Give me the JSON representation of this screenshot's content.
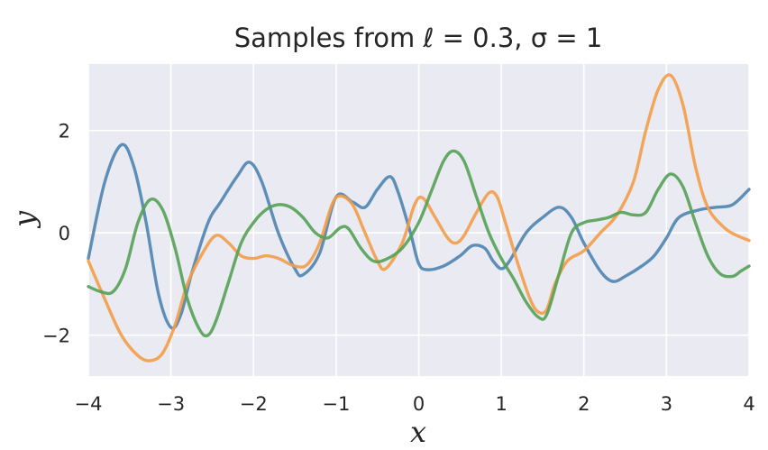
{
  "chart_data": {
    "type": "line",
    "title": "Samples from ℓ = 0.3, σ = 1",
    "xlabel": "x",
    "ylabel": "y",
    "xlim": [
      -4,
      4
    ],
    "ylim": [
      -2.8,
      3.3
    ],
    "xticks": [
      -4,
      -3,
      -2,
      -1,
      0,
      1,
      2,
      3,
      4
    ],
    "xtick_labels": [
      "−4",
      "−3",
      "−2",
      "−1",
      "0",
      "1",
      "2",
      "3",
      "4"
    ],
    "yticks": [
      -2,
      0,
      2
    ],
    "ytick_labels": [
      "−2",
      "0",
      "2"
    ],
    "grid": true,
    "legend": false,
    "colors": {
      "background": "#eaeaf2",
      "grid": "#ffffff",
      "text": "#262626"
    },
    "series": [
      {
        "color": "#4c84b0",
        "points": [
          [
            -4,
            -0.5
          ],
          [
            -3.8,
            1.0
          ],
          [
            -3.6,
            1.72
          ],
          [
            -3.45,
            1.3
          ],
          [
            -3.3,
            0.2
          ],
          [
            -3.15,
            -1.2
          ],
          [
            -3.0,
            -1.85
          ],
          [
            -2.88,
            -1.6
          ],
          [
            -2.75,
            -0.8
          ],
          [
            -2.55,
            0.2
          ],
          [
            -2.4,
            0.6
          ],
          [
            -2.2,
            1.1
          ],
          [
            -2.05,
            1.38
          ],
          [
            -1.9,
            1.0
          ],
          [
            -1.7,
            0.0
          ],
          [
            -1.5,
            -0.7
          ],
          [
            -1.4,
            -0.82
          ],
          [
            -1.2,
            -0.4
          ],
          [
            -1.0,
            0.7
          ],
          [
            -0.8,
            0.6
          ],
          [
            -0.65,
            0.5
          ],
          [
            -0.5,
            0.85
          ],
          [
            -0.35,
            1.1
          ],
          [
            -0.25,
            0.8
          ],
          [
            -0.1,
            0.0
          ],
          [
            0.0,
            -0.6
          ],
          [
            0.1,
            -0.72
          ],
          [
            0.3,
            -0.65
          ],
          [
            0.5,
            -0.45
          ],
          [
            0.65,
            -0.25
          ],
          [
            0.8,
            -0.3
          ],
          [
            0.9,
            -0.55
          ],
          [
            1.0,
            -0.7
          ],
          [
            1.1,
            -0.55
          ],
          [
            1.3,
            0.0
          ],
          [
            1.5,
            0.3
          ],
          [
            1.7,
            0.5
          ],
          [
            1.85,
            0.3
          ],
          [
            2.0,
            -0.2
          ],
          [
            2.2,
            -0.75
          ],
          [
            2.35,
            -0.95
          ],
          [
            2.5,
            -0.85
          ],
          [
            2.7,
            -0.65
          ],
          [
            2.85,
            -0.45
          ],
          [
            3.0,
            -0.1
          ],
          [
            3.15,
            0.3
          ],
          [
            3.4,
            0.45
          ],
          [
            3.6,
            0.5
          ],
          [
            3.8,
            0.55
          ],
          [
            4.0,
            0.85
          ]
        ]
      },
      {
        "color": "#f39c47",
        "points": [
          [
            -4,
            -0.55
          ],
          [
            -3.8,
            -1.3
          ],
          [
            -3.6,
            -2.0
          ],
          [
            -3.4,
            -2.4
          ],
          [
            -3.25,
            -2.5
          ],
          [
            -3.1,
            -2.35
          ],
          [
            -2.95,
            -1.8
          ],
          [
            -2.8,
            -1.0
          ],
          [
            -2.6,
            -0.35
          ],
          [
            -2.45,
            -0.05
          ],
          [
            -2.3,
            -0.2
          ],
          [
            -2.15,
            -0.45
          ],
          [
            -2.0,
            -0.5
          ],
          [
            -1.85,
            -0.45
          ],
          [
            -1.7,
            -0.5
          ],
          [
            -1.5,
            -0.65
          ],
          [
            -1.35,
            -0.62
          ],
          [
            -1.2,
            -0.2
          ],
          [
            -1.05,
            0.55
          ],
          [
            -0.95,
            0.72
          ],
          [
            -0.8,
            0.55
          ],
          [
            -0.65,
            0.0
          ],
          [
            -0.5,
            -0.55
          ],
          [
            -0.4,
            -0.7
          ],
          [
            -0.2,
            -0.2
          ],
          [
            -0.05,
            0.55
          ],
          [
            0.05,
            0.68
          ],
          [
            0.2,
            0.3
          ],
          [
            0.35,
            -0.1
          ],
          [
            0.45,
            -0.2
          ],
          [
            0.55,
            -0.05
          ],
          [
            0.7,
            0.4
          ],
          [
            0.85,
            0.78
          ],
          [
            0.95,
            0.7
          ],
          [
            1.05,
            0.2
          ],
          [
            1.2,
            -0.6
          ],
          [
            1.35,
            -1.3
          ],
          [
            1.45,
            -1.55
          ],
          [
            1.55,
            -1.5
          ],
          [
            1.65,
            -1.0
          ],
          [
            1.8,
            -0.55
          ],
          [
            2.0,
            -0.35
          ],
          [
            2.2,
            0.0
          ],
          [
            2.4,
            0.35
          ],
          [
            2.6,
            1.0
          ],
          [
            2.75,
            2.0
          ],
          [
            2.9,
            2.8
          ],
          [
            3.05,
            3.08
          ],
          [
            3.2,
            2.5
          ],
          [
            3.35,
            1.3
          ],
          [
            3.5,
            0.5
          ],
          [
            3.7,
            0.1
          ],
          [
            3.85,
            -0.05
          ],
          [
            4.0,
            -0.15
          ]
        ]
      },
      {
        "color": "#55a155",
        "points": [
          [
            -4,
            -1.05
          ],
          [
            -3.85,
            -1.15
          ],
          [
            -3.7,
            -1.15
          ],
          [
            -3.55,
            -0.7
          ],
          [
            -3.4,
            0.2
          ],
          [
            -3.25,
            0.65
          ],
          [
            -3.1,
            0.45
          ],
          [
            -2.95,
            -0.3
          ],
          [
            -2.8,
            -1.3
          ],
          [
            -2.65,
            -1.9
          ],
          [
            -2.55,
            -2.0
          ],
          [
            -2.45,
            -1.7
          ],
          [
            -2.3,
            -0.95
          ],
          [
            -2.15,
            -0.2
          ],
          [
            -2.0,
            0.2
          ],
          [
            -1.85,
            0.45
          ],
          [
            -1.7,
            0.55
          ],
          [
            -1.55,
            0.5
          ],
          [
            -1.4,
            0.3
          ],
          [
            -1.25,
            0.0
          ],
          [
            -1.1,
            -0.1
          ],
          [
            -0.95,
            0.1
          ],
          [
            -0.85,
            0.08
          ],
          [
            -0.7,
            -0.3
          ],
          [
            -0.55,
            -0.55
          ],
          [
            -0.4,
            -0.52
          ],
          [
            -0.2,
            -0.3
          ],
          [
            0.0,
            0.2
          ],
          [
            0.15,
            0.8
          ],
          [
            0.3,
            1.4
          ],
          [
            0.42,
            1.6
          ],
          [
            0.55,
            1.4
          ],
          [
            0.7,
            0.7
          ],
          [
            0.85,
            0.0
          ],
          [
            1.0,
            -0.5
          ],
          [
            1.15,
            -0.9
          ],
          [
            1.3,
            -1.35
          ],
          [
            1.45,
            -1.65
          ],
          [
            1.55,
            -1.6
          ],
          [
            1.7,
            -0.8
          ],
          [
            1.85,
            0.0
          ],
          [
            2.0,
            0.2
          ],
          [
            2.15,
            0.25
          ],
          [
            2.3,
            0.3
          ],
          [
            2.45,
            0.4
          ],
          [
            2.6,
            0.35
          ],
          [
            2.75,
            0.4
          ],
          [
            2.9,
            0.85
          ],
          [
            3.05,
            1.15
          ],
          [
            3.2,
            0.9
          ],
          [
            3.35,
            0.2
          ],
          [
            3.5,
            -0.45
          ],
          [
            3.65,
            -0.8
          ],
          [
            3.8,
            -0.85
          ],
          [
            3.9,
            -0.75
          ],
          [
            4.0,
            -0.65
          ]
        ]
      }
    ]
  }
}
